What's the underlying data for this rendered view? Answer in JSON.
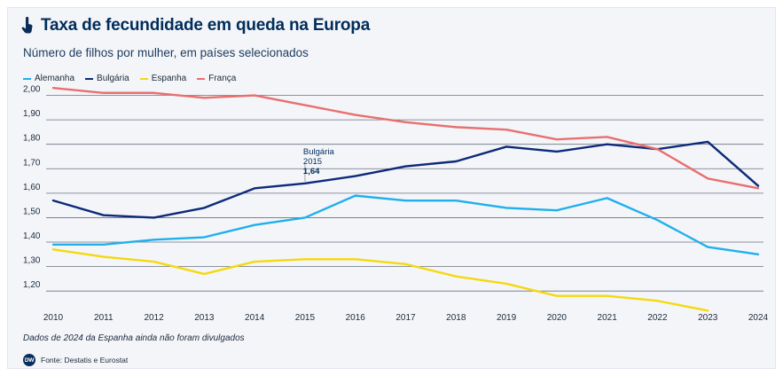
{
  "header": {
    "title": "Taxa de fecundidade em queda na Europa",
    "subtitle": "Número de filhos por mulher, em países selecionados",
    "title_icon": "pointer-hand-icon"
  },
  "footer": {
    "note": "Dados de 2024 da Espanha ainda não foram divulgados",
    "source": "Fonte: Destatis e Eurostat",
    "logo_text": "DW"
  },
  "chart_data": {
    "type": "line",
    "title": "Taxa de fecundidade em queda na Europa",
    "xlabel": "",
    "ylabel": "",
    "x": [
      2010,
      2011,
      2012,
      2013,
      2014,
      2015,
      2016,
      2017,
      2018,
      2019,
      2020,
      2021,
      2022,
      2023,
      2024
    ],
    "ylim": [
      1.15,
      2.02
    ],
    "y_ticks": [
      1.2,
      1.3,
      1.4,
      1.5,
      1.6,
      1.7,
      1.8,
      1.9,
      2.0
    ],
    "y_tick_labels": [
      "1,20",
      "1,30",
      "1,40",
      "1,50",
      "1,60",
      "1,70",
      "1,80",
      "1,90",
      "2,00"
    ],
    "grid": true,
    "legend_position": "top-left",
    "series": [
      {
        "name": "Alemanha",
        "color": "#1fb0ec",
        "values": [
          1.39,
          1.39,
          1.41,
          1.42,
          1.47,
          1.5,
          1.59,
          1.57,
          1.57,
          1.54,
          1.53,
          1.58,
          1.49,
          1.38,
          1.35
        ]
      },
      {
        "name": "Bulgária",
        "color": "#0c2a7a",
        "values": [
          1.57,
          1.51,
          1.5,
          1.54,
          1.62,
          1.64,
          1.67,
          1.71,
          1.73,
          1.79,
          1.77,
          1.8,
          1.78,
          1.81,
          1.63
        ]
      },
      {
        "name": "Espanha",
        "color": "#f4d90e",
        "values": [
          1.37,
          1.34,
          1.32,
          1.27,
          1.32,
          1.33,
          1.33,
          1.31,
          1.26,
          1.23,
          1.18,
          1.18,
          1.16,
          1.12,
          null
        ]
      },
      {
        "name": "França",
        "color": "#e8706f",
        "values": [
          2.03,
          2.01,
          2.01,
          1.99,
          2.0,
          1.96,
          1.92,
          1.89,
          1.87,
          1.86,
          1.82,
          1.83,
          1.78,
          1.66,
          1.62
        ]
      }
    ],
    "annotations": [
      {
        "series": "Bulgária",
        "x": 2015,
        "y": 1.64,
        "lines": [
          "Bulgária",
          "2015",
          "1,64"
        ]
      }
    ]
  }
}
